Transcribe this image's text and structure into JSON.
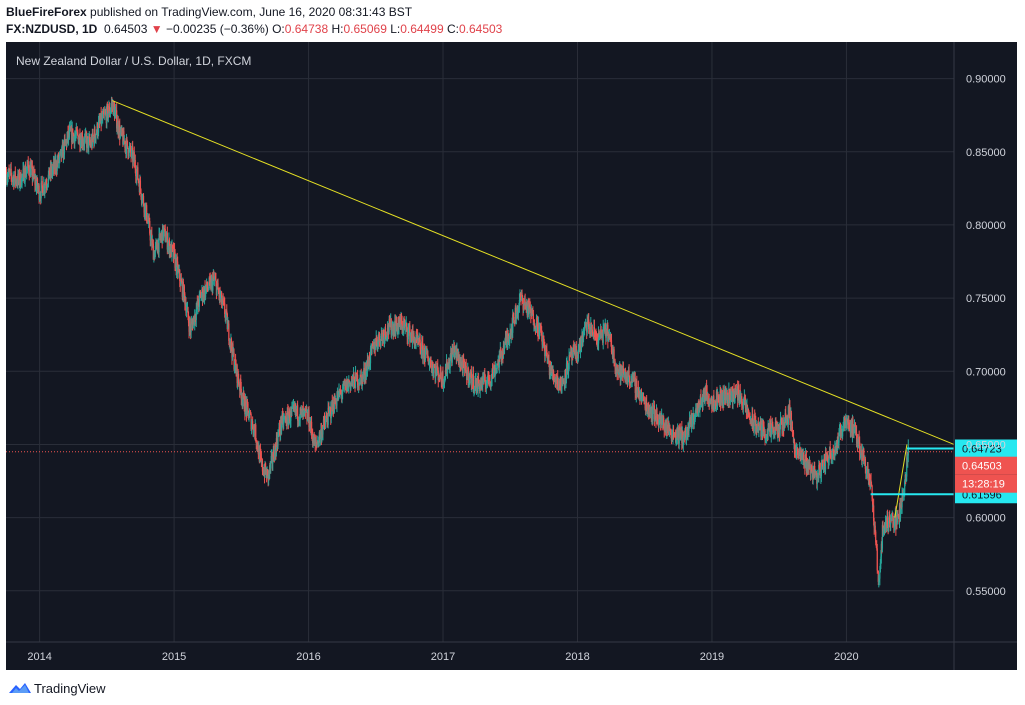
{
  "header": {
    "author": "BlueFireForex",
    "published_text": "published on TradingView.com, June 16, 2020 08:31:43 BST",
    "symbol": "FX:NZDUSD, 1D",
    "last": "0.64503",
    "arrow": "▼",
    "change": "−0.00235 (−0.36%)",
    "o_label": "O:",
    "o_value": "0.64738",
    "h_label": "H:",
    "h_value": "0.65069",
    "l_label": "L:",
    "l_value": "0.64499",
    "c_label": "C:",
    "c_value": "0.64503"
  },
  "footer": {
    "brand": "TradingView",
    "logo_icon": "tradingview-logo-icon"
  },
  "colors": {
    "background": "#131722",
    "grid": "#2a2e39",
    "up": "#26a69a",
    "down": "#ef5350",
    "trendline": "#e5e024",
    "level": "#26e8f0",
    "last_badge": "#ef5350"
  },
  "chart_data": {
    "type": "candlestick",
    "title": "New Zealand Dollar / U.S. Dollar, 1D, FXCM",
    "xlabel": "",
    "ylabel": "",
    "x_ticks": [
      "2014",
      "2015",
      "2016",
      "2017",
      "2018",
      "2019",
      "2020"
    ],
    "y_ticks": [
      "0.90000",
      "0.85000",
      "0.80000",
      "0.75000",
      "0.70000",
      "0.65000",
      "0.60000",
      "0.55000"
    ],
    "x_range": [
      2013.75,
      2020.8
    ],
    "ylim": [
      0.515,
      0.925
    ],
    "grid": true,
    "price_series": [
      [
        2013.75,
        0.835
      ],
      [
        2013.85,
        0.83
      ],
      [
        2013.92,
        0.84
      ],
      [
        2014.0,
        0.822
      ],
      [
        2014.08,
        0.835
      ],
      [
        2014.15,
        0.845
      ],
      [
        2014.22,
        0.862
      ],
      [
        2014.3,
        0.86
      ],
      [
        2014.38,
        0.855
      ],
      [
        2014.45,
        0.87
      ],
      [
        2014.52,
        0.878
      ],
      [
        2014.54,
        0.883
      ],
      [
        2014.6,
        0.862
      ],
      [
        2014.7,
        0.845
      ],
      [
        2014.8,
        0.805
      ],
      [
        2014.85,
        0.78
      ],
      [
        2014.92,
        0.795
      ],
      [
        2015.0,
        0.778
      ],
      [
        2015.08,
        0.75
      ],
      [
        2015.12,
        0.728
      ],
      [
        2015.2,
        0.752
      ],
      [
        2015.3,
        0.762
      ],
      [
        2015.38,
        0.74
      ],
      [
        2015.45,
        0.705
      ],
      [
        2015.52,
        0.678
      ],
      [
        2015.6,
        0.66
      ],
      [
        2015.65,
        0.635
      ],
      [
        2015.7,
        0.628
      ],
      [
        2015.8,
        0.665
      ],
      [
        2015.9,
        0.672
      ],
      [
        2016.0,
        0.668
      ],
      [
        2016.05,
        0.648
      ],
      [
        2016.1,
        0.66
      ],
      [
        2016.2,
        0.68
      ],
      [
        2016.3,
        0.692
      ],
      [
        2016.4,
        0.695
      ],
      [
        2016.5,
        0.72
      ],
      [
        2016.6,
        0.73
      ],
      [
        2016.7,
        0.732
      ],
      [
        2016.8,
        0.72
      ],
      [
        2016.88,
        0.71
      ],
      [
        2016.95,
        0.7
      ],
      [
        2017.0,
        0.695
      ],
      [
        2017.08,
        0.715
      ],
      [
        2017.15,
        0.702
      ],
      [
        2017.25,
        0.69
      ],
      [
        2017.35,
        0.695
      ],
      [
        2017.42,
        0.708
      ],
      [
        2017.5,
        0.728
      ],
      [
        2017.58,
        0.75
      ],
      [
        2017.65,
        0.74
      ],
      [
        2017.72,
        0.728
      ],
      [
        2017.8,
        0.7
      ],
      [
        2017.88,
        0.69
      ],
      [
        2017.95,
        0.71
      ],
      [
        2018.0,
        0.712
      ],
      [
        2018.07,
        0.732
      ],
      [
        2018.15,
        0.722
      ],
      [
        2018.22,
        0.728
      ],
      [
        2018.3,
        0.7
      ],
      [
        2018.4,
        0.695
      ],
      [
        2018.5,
        0.678
      ],
      [
        2018.6,
        0.668
      ],
      [
        2018.7,
        0.658
      ],
      [
        2018.8,
        0.655
      ],
      [
        2018.88,
        0.672
      ],
      [
        2018.95,
        0.685
      ],
      [
        2019.0,
        0.68
      ],
      [
        2019.1,
        0.683
      ],
      [
        2019.2,
        0.685
      ],
      [
        2019.3,
        0.665
      ],
      [
        2019.4,
        0.658
      ],
      [
        2019.5,
        0.66
      ],
      [
        2019.58,
        0.672
      ],
      [
        2019.62,
        0.645
      ],
      [
        2019.7,
        0.638
      ],
      [
        2019.78,
        0.628
      ],
      [
        2019.85,
        0.64
      ],
      [
        2019.93,
        0.65
      ],
      [
        2019.99,
        0.668
      ],
      [
        2020.05,
        0.66
      ],
      [
        2020.12,
        0.643
      ],
      [
        2020.18,
        0.625
      ],
      [
        2020.22,
        0.58
      ],
      [
        2020.24,
        0.555
      ],
      [
        2020.27,
        0.592
      ],
      [
        2020.33,
        0.6
      ],
      [
        2020.38,
        0.597
      ],
      [
        2020.42,
        0.615
      ],
      [
        2020.44,
        0.63
      ],
      [
        2020.46,
        0.645
      ]
    ],
    "trendline": {
      "from": [
        2014.54,
        0.885
      ],
      "to": [
        2020.8,
        0.65
      ]
    },
    "horizontal_levels": [
      {
        "label": "0.64723",
        "value": 0.64723,
        "from_x": 2020.45
      },
      {
        "label": "0.61596",
        "value": 0.61596,
        "from_x": 2020.18
      }
    ],
    "last_price": {
      "label": "0.64503",
      "value": 0.64503,
      "countdown": "13:28:19"
    }
  }
}
